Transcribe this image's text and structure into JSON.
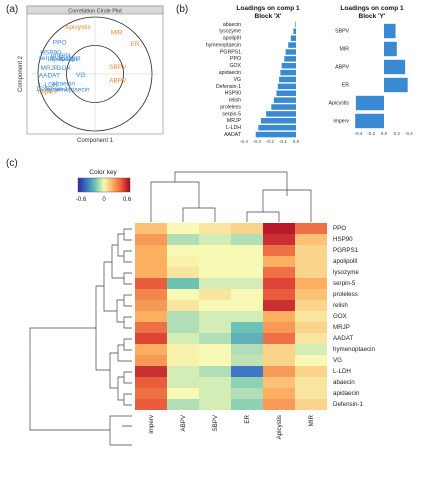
{
  "panels": {
    "a": "(a)",
    "b": "(b)",
    "c": "(c)"
  },
  "chart_data": [
    {
      "type": "scatter",
      "title": "Correlation Circle Plot",
      "xlabel": "Component 1",
      "ylabel": "Component 2",
      "xlim": [
        -1,
        1
      ],
      "ylim": [
        -1,
        1
      ],
      "circle_radii": [
        0.5,
        1.0
      ],
      "series": [
        {
          "name": "Block X",
          "color": "#3a8ad3",
          "points": [
            {
              "label": "PPO",
              "x": -0.62,
              "y": 0.55
            },
            {
              "label": "HSP90",
              "x": -0.78,
              "y": 0.37
            },
            {
              "label": "proleta",
              "x": -0.6,
              "y": 0.33
            },
            {
              "label": "serpin-5",
              "x": -0.78,
              "y": 0.28
            },
            {
              "label": "apidaecin",
              "x": -0.55,
              "y": 0.26
            },
            {
              "label": "apolipIII",
              "x": -0.45,
              "y": 0.27
            },
            {
              "label": "GOX",
              "x": -0.55,
              "y": 0.1
            },
            {
              "label": "MRJP",
              "x": -0.8,
              "y": 0.1
            },
            {
              "label": "VG",
              "x": -0.25,
              "y": -0.02
            },
            {
              "label": "AADAT",
              "x": -0.8,
              "y": -0.03
            },
            {
              "label": "L-LDH",
              "x": -0.82,
              "y": -0.2
            },
            {
              "label": "abaecin",
              "x": -0.55,
              "y": -0.17
            },
            {
              "label": "Defensin-1",
              "x": -0.75,
              "y": -0.27
            },
            {
              "label": "hymenoptaecin",
              "x": -0.48,
              "y": -0.28
            }
          ]
        },
        {
          "name": "Block Y",
          "color": "#ef8a2d",
          "points": [
            {
              "label": "Apicystis",
              "x": -0.3,
              "y": 0.82
            },
            {
              "label": "MIR",
              "x": 0.38,
              "y": 0.72
            },
            {
              "label": "ER",
              "x": 0.7,
              "y": 0.52
            },
            {
              "label": "SBPV",
              "x": 0.4,
              "y": 0.12
            },
            {
              "label": "ABPV",
              "x": 0.4,
              "y": -0.12
            },
            {
              "label": "imperv",
              "x": -0.83,
              "y": -0.31
            }
          ]
        }
      ]
    },
    {
      "type": "bar",
      "orientation": "horizontal",
      "title": "Loadings on comp 1",
      "subtitle": "Block 'X'",
      "color": "#3a8ad3",
      "categories": [
        "abaecin",
        "lysozyme",
        "apolipIII",
        "hymenoptaecin",
        "PGRPS1",
        "PPO",
        "GOX",
        "apidaecin",
        "VG",
        "Defensin-1",
        "HSP90",
        "relish",
        "proleless",
        "serpin-5",
        "MRJP",
        "L-LDH",
        "AADAT"
      ],
      "values": [
        -0.005,
        -0.02,
        -0.04,
        -0.06,
        -0.08,
        -0.09,
        -0.11,
        -0.12,
        -0.13,
        -0.14,
        -0.15,
        -0.17,
        -0.19,
        -0.23,
        -0.27,
        -0.29,
        -0.31
      ],
      "xlim": [
        -0.4,
        0.0
      ],
      "xticks": [
        "-0.4",
        "-0.3",
        "-0.2",
        "-0.1",
        "0.0"
      ]
    },
    {
      "type": "bar",
      "orientation": "horizontal",
      "title": "Loadings on comp 1",
      "subtitle": "Block 'Y'",
      "color": "#3a8ad3",
      "categories": [
        "SBPV",
        "MIR",
        "ABPV",
        "ER",
        "Apicystis",
        "imperv"
      ],
      "values": [
        0.18,
        0.2,
        0.33,
        0.37,
        -0.44,
        -0.45
      ],
      "xlim": [
        -0.5,
        0.5
      ],
      "xticks": [
        "-0.4",
        "-0.2",
        "0.0",
        "0.2",
        "0.4"
      ]
    },
    {
      "type": "heatmap",
      "legend_title": "Color key",
      "scale_ticks": [
        "-0.6",
        "0",
        "0.6"
      ],
      "zlim": [
        -0.6,
        0.6
      ],
      "columns": [
        "imperv",
        "ABPV",
        "SBPV",
        "ER",
        "Apicystis",
        "MIR"
      ],
      "rows": [
        "PPO",
        "HSP90",
        "PGRPS1",
        "apolipolll",
        "lysozyme",
        "serpin-5",
        "proleless",
        "relish",
        "GOX",
        "MRJP",
        "AADAT",
        "hymenoptaecin",
        "VG",
        "L-LDH",
        "abaecin",
        "apidaecin",
        "Defensin-1"
      ],
      "values": [
        [
          0.15,
          0.0,
          0.05,
          0.1,
          0.55,
          0.35
        ],
        [
          0.25,
          -0.1,
          -0.05,
          -0.1,
          0.5,
          0.15
        ],
        [
          0.2,
          0.0,
          0.0,
          0.0,
          0.35,
          0.1
        ],
        [
          0.2,
          0.02,
          0.0,
          0.0,
          0.2,
          0.1
        ],
        [
          0.2,
          0.05,
          0.0,
          0.0,
          0.35,
          0.1
        ],
        [
          0.4,
          -0.2,
          -0.05,
          -0.05,
          0.45,
          0.2
        ],
        [
          0.3,
          0.0,
          0.05,
          0.0,
          0.4,
          0.15
        ],
        [
          0.25,
          0.05,
          0.0,
          0.0,
          0.5,
          0.1
        ],
        [
          0.2,
          -0.1,
          -0.05,
          -0.05,
          0.2,
          0.05
        ],
        [
          0.35,
          -0.1,
          -0.05,
          -0.2,
          0.25,
          0.1
        ],
        [
          0.45,
          -0.05,
          -0.1,
          -0.25,
          0.35,
          0.05
        ],
        [
          0.2,
          0.02,
          0.0,
          -0.1,
          0.1,
          -0.05
        ],
        [
          0.25,
          0.02,
          0.0,
          -0.08,
          0.1,
          0.0
        ],
        [
          0.5,
          -0.05,
          -0.1,
          -0.4,
          0.25,
          0.1
        ],
        [
          0.4,
          -0.05,
          -0.05,
          -0.15,
          0.15,
          0.05
        ],
        [
          0.35,
          0.0,
          -0.05,
          -0.1,
          0.2,
          0.05
        ],
        [
          0.4,
          -0.1,
          -0.05,
          -0.15,
          0.25,
          0.1
        ]
      ]
    }
  ]
}
